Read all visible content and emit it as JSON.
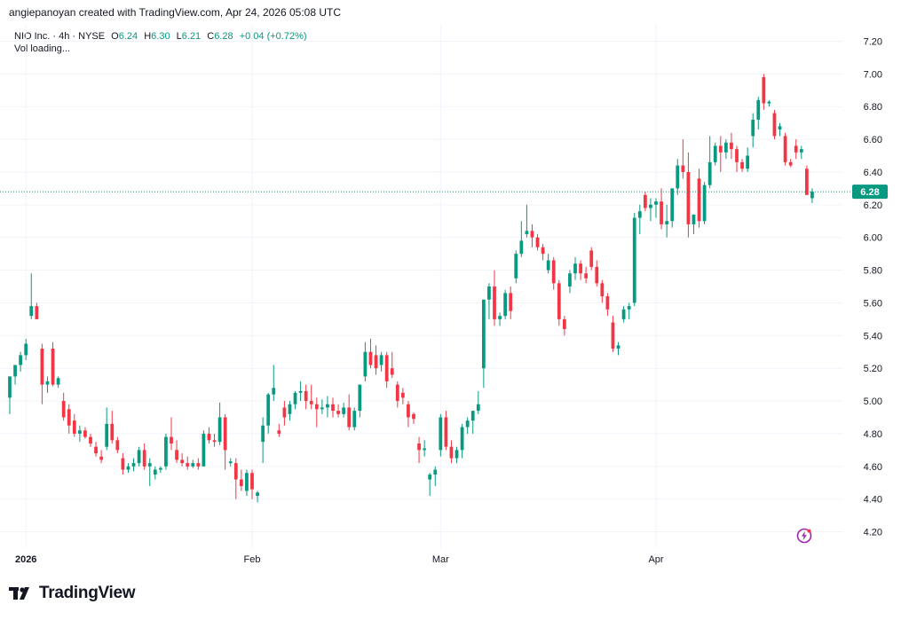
{
  "header": {
    "attribution": "angiepanoyan created with TradingView.com, Apr 24, 2026 05:08 UTC"
  },
  "legend": {
    "symbol": "NIO Inc. · 4h · NYSE",
    "open_label": "O",
    "open": "6.24",
    "high_label": "H",
    "high": "6.30",
    "low_label": "L",
    "low": "6.21",
    "close_label": "C",
    "close": "6.28",
    "change": "+0.04 (+0.72%)",
    "volume_status": "Vol loading..."
  },
  "footer": {
    "brand": "TradingView",
    "logo_icon": "tradingview-logo-icon"
  },
  "colors": {
    "up": "#089981",
    "down": "#f23645",
    "grid": "#f0f3fa",
    "text": "#131722",
    "price_line": "#089981"
  },
  "chart_data": {
    "type": "candlestick",
    "interval": "4h",
    "ylim": [
      4.1,
      7.3
    ],
    "yticks": [
      "7.20",
      "7.00",
      "6.80",
      "6.60",
      "6.40",
      "6.20",
      "6.00",
      "5.80",
      "5.60",
      "5.40",
      "5.20",
      "5.00",
      "4.80",
      "4.60",
      "4.40",
      "4.20"
    ],
    "xticks": [
      "2026",
      "Feb",
      "Mar",
      "Apr"
    ],
    "xtick_index": [
      3,
      45,
      80,
      120
    ],
    "last_price": "6.28",
    "last_value": 6.28,
    "grid": true,
    "candles": [
      [
        5.02,
        5.15,
        4.92,
        5.15
      ],
      [
        5.15,
        5.22,
        5.1,
        5.22
      ],
      [
        5.22,
        5.3,
        5.18,
        5.28
      ],
      [
        5.28,
        5.38,
        5.25,
        5.35
      ],
      [
        5.52,
        5.78,
        5.5,
        5.58
      ],
      [
        5.58,
        5.6,
        5.5,
        5.5
      ],
      [
        5.32,
        5.35,
        4.98,
        5.1
      ],
      [
        5.1,
        5.15,
        5.05,
        5.12
      ],
      [
        5.32,
        5.36,
        5.09,
        5.1
      ],
      [
        5.1,
        5.15,
        5.08,
        5.14
      ],
      [
        5.0,
        5.05,
        4.88,
        4.9
      ],
      [
        4.95,
        4.98,
        4.8,
        4.85
      ],
      [
        4.88,
        4.92,
        4.78,
        4.8
      ],
      [
        4.8,
        4.85,
        4.75,
        4.82
      ],
      [
        4.82,
        4.84,
        4.77,
        4.78
      ],
      [
        4.78,
        4.8,
        4.72,
        4.74
      ],
      [
        4.72,
        4.75,
        4.66,
        4.68
      ],
      [
        4.66,
        4.7,
        4.62,
        4.64
      ],
      [
        4.72,
        4.96,
        4.7,
        4.86
      ],
      [
        4.86,
        4.94,
        4.74,
        4.76
      ],
      [
        4.76,
        4.78,
        4.68,
        4.7
      ],
      [
        4.65,
        4.68,
        4.55,
        4.58
      ],
      [
        4.58,
        4.62,
        4.56,
        4.6
      ],
      [
        4.6,
        4.65,
        4.57,
        4.62
      ],
      [
        4.62,
        4.72,
        4.6,
        4.7
      ],
      [
        4.7,
        4.74,
        4.58,
        4.6
      ],
      [
        4.6,
        4.65,
        4.48,
        4.62
      ],
      [
        4.55,
        4.6,
        4.52,
        4.58
      ],
      [
        4.58,
        4.6,
        4.56,
        4.59
      ],
      [
        4.6,
        4.8,
        4.58,
        4.78
      ],
      [
        4.78,
        4.9,
        4.7,
        4.74
      ],
      [
        4.7,
        4.76,
        4.62,
        4.64
      ],
      [
        4.64,
        4.68,
        4.6,
        4.62
      ],
      [
        4.62,
        4.66,
        4.58,
        4.6
      ],
      [
        4.6,
        4.64,
        4.59,
        4.62
      ],
      [
        4.62,
        4.65,
        4.58,
        4.6
      ],
      [
        4.6,
        4.82,
        4.6,
        4.8
      ],
      [
        4.8,
        4.84,
        4.74,
        4.76
      ],
      [
        4.76,
        4.8,
        4.72,
        4.75
      ],
      [
        4.75,
        4.99,
        4.73,
        4.9
      ],
      [
        4.9,
        4.92,
        4.58,
        4.7
      ],
      [
        4.62,
        4.65,
        4.6,
        4.63
      ],
      [
        4.62,
        4.65,
        4.4,
        4.52
      ],
      [
        4.52,
        4.58,
        4.45,
        4.48
      ],
      [
        4.45,
        4.58,
        4.42,
        4.56
      ],
      [
        4.56,
        4.58,
        4.4,
        4.46
      ],
      [
        4.42,
        4.45,
        4.38,
        4.44
      ],
      [
        4.75,
        4.9,
        4.62,
        4.85
      ],
      [
        4.85,
        5.05,
        4.8,
        5.04
      ],
      [
        5.04,
        5.22,
        5.0,
        5.08
      ],
      [
        4.82,
        4.86,
        4.78,
        4.8
      ],
      [
        4.96,
        5.0,
        4.85,
        4.9
      ],
      [
        4.92,
        5.0,
        4.88,
        4.98
      ],
      [
        4.98,
        5.06,
        4.95,
        5.05
      ],
      [
        5.05,
        5.12,
        5.0,
        5.06
      ],
      [
        5.06,
        5.1,
        4.95,
        5.0
      ],
      [
        5.0,
        5.1,
        4.95,
        4.98
      ],
      [
        4.98,
        5.02,
        4.84,
        4.95
      ],
      [
        4.95,
        5.01,
        4.92,
        4.96
      ],
      [
        4.96,
        5.03,
        4.9,
        4.98
      ],
      [
        4.98,
        5.02,
        4.9,
        4.94
      ],
      [
        4.94,
        4.98,
        4.9,
        4.92
      ],
      [
        4.92,
        4.99,
        4.9,
        4.96
      ],
      [
        4.96,
        5.04,
        4.82,
        4.84
      ],
      [
        4.84,
        4.96,
        4.82,
        4.94
      ],
      [
        4.94,
        5.1,
        4.9,
        5.1
      ],
      [
        5.15,
        5.36,
        5.12,
        5.3
      ],
      [
        5.3,
        5.38,
        5.2,
        5.22
      ],
      [
        5.28,
        5.34,
        5.16,
        5.2
      ],
      [
        5.22,
        5.3,
        5.18,
        5.28
      ],
      [
        5.28,
        5.3,
        5.08,
        5.12
      ],
      [
        5.2,
        5.3,
        5.14,
        5.16
      ],
      [
        5.1,
        5.12,
        4.96,
        5.0
      ],
      [
        5.05,
        5.08,
        4.98,
        5.02
      ],
      [
        4.98,
        5.0,
        4.84,
        4.9
      ],
      [
        4.92,
        4.93,
        4.86,
        4.89
      ],
      [
        4.74,
        4.78,
        4.62,
        4.7
      ],
      [
        4.7,
        4.76,
        4.66,
        4.71
      ],
      [
        4.52,
        4.56,
        4.42,
        4.55
      ],
      [
        4.55,
        4.6,
        4.48,
        4.58
      ],
      [
        4.7,
        4.92,
        4.66,
        4.9
      ],
      [
        4.9,
        4.94,
        4.7,
        4.72
      ],
      [
        4.72,
        4.76,
        4.62,
        4.65
      ],
      [
        4.65,
        4.72,
        4.62,
        4.7
      ],
      [
        4.7,
        4.86,
        4.65,
        4.84
      ],
      [
        4.84,
        4.9,
        4.8,
        4.88
      ],
      [
        4.88,
        4.94,
        4.8,
        4.94
      ],
      [
        4.94,
        5.06,
        4.92,
        4.98
      ],
      [
        5.2,
        5.62,
        5.08,
        5.62
      ],
      [
        5.62,
        5.72,
        5.5,
        5.7
      ],
      [
        5.7,
        5.8,
        5.46,
        5.5
      ],
      [
        5.5,
        5.54,
        5.46,
        5.52
      ],
      [
        5.52,
        5.68,
        5.5,
        5.66
      ],
      [
        5.66,
        5.7,
        5.5,
        5.55
      ],
      [
        5.75,
        5.92,
        5.72,
        5.9
      ],
      [
        5.9,
        6.1,
        5.88,
        5.98
      ],
      [
        6.02,
        6.2,
        6.0,
        6.04
      ],
      [
        6.04,
        6.08,
        5.94,
        6.0
      ],
      [
        6.0,
        6.02,
        5.92,
        5.94
      ],
      [
        5.94,
        5.96,
        5.86,
        5.9
      ],
      [
        5.8,
        5.9,
        5.78,
        5.86
      ],
      [
        5.86,
        5.88,
        5.68,
        5.72
      ],
      [
        5.72,
        5.74,
        5.46,
        5.5
      ],
      [
        5.5,
        5.52,
        5.4,
        5.44
      ],
      [
        5.7,
        5.8,
        5.66,
        5.78
      ],
      [
        5.78,
        5.88,
        5.74,
        5.84
      ],
      [
        5.84,
        5.86,
        5.74,
        5.78
      ],
      [
        5.78,
        5.82,
        5.72,
        5.75
      ],
      [
        5.92,
        5.94,
        5.8,
        5.82
      ],
      [
        5.82,
        5.86,
        5.7,
        5.72
      ],
      [
        5.72,
        5.74,
        5.6,
        5.64
      ],
      [
        5.64,
        5.66,
        5.52,
        5.56
      ],
      [
        5.48,
        5.52,
        5.3,
        5.32
      ],
      [
        5.32,
        5.36,
        5.28,
        5.34
      ],
      [
        5.5,
        5.58,
        5.48,
        5.56
      ],
      [
        5.56,
        5.6,
        5.5,
        5.58
      ],
      [
        5.6,
        6.15,
        5.58,
        6.12
      ],
      [
        6.12,
        6.2,
        6.02,
        6.16
      ],
      [
        6.26,
        6.28,
        6.16,
        6.18
      ],
      [
        6.18,
        6.24,
        6.1,
        6.2
      ],
      [
        6.2,
        6.24,
        6.12,
        6.22
      ],
      [
        6.22,
        6.3,
        6.05,
        6.08
      ],
      [
        6.08,
        6.2,
        6.0,
        6.1
      ],
      [
        6.1,
        6.3,
        6.06,
        6.3
      ],
      [
        6.3,
        6.48,
        6.26,
        6.44
      ],
      [
        6.44,
        6.6,
        6.36,
        6.4
      ],
      [
        6.4,
        6.52,
        6.0,
        6.08
      ],
      [
        6.08,
        6.14,
        6.02,
        6.14
      ],
      [
        6.36,
        6.42,
        6.06,
        6.1
      ],
      [
        6.1,
        6.34,
        6.08,
        6.32
      ],
      [
        6.32,
        6.62,
        6.3,
        6.46
      ],
      [
        6.46,
        6.58,
        6.44,
        6.56
      ],
      [
        6.56,
        6.62,
        6.4,
        6.52
      ],
      [
        6.52,
        6.6,
        6.48,
        6.58
      ],
      [
        6.58,
        6.64,
        6.48,
        6.54
      ],
      [
        6.54,
        6.56,
        6.4,
        6.46
      ],
      [
        6.46,
        6.48,
        6.4,
        6.42
      ],
      [
        6.42,
        6.55,
        6.4,
        6.5
      ],
      [
        6.62,
        6.76,
        6.55,
        6.72
      ],
      [
        6.72,
        6.86,
        6.66,
        6.84
      ],
      [
        6.98,
        7.0,
        6.78,
        6.82
      ],
      [
        6.82,
        6.84,
        6.8,
        6.83
      ],
      [
        6.76,
        6.78,
        6.6,
        6.62
      ],
      [
        6.66,
        6.7,
        6.62,
        6.68
      ],
      [
        6.62,
        6.64,
        6.44,
        6.46
      ],
      [
        6.46,
        6.48,
        6.43,
        6.44
      ],
      [
        6.56,
        6.6,
        6.48,
        6.52
      ],
      [
        6.52,
        6.56,
        6.48,
        6.54
      ],
      [
        6.42,
        6.44,
        6.26,
        6.26
      ],
      [
        6.24,
        6.3,
        6.21,
        6.28
      ]
    ]
  }
}
